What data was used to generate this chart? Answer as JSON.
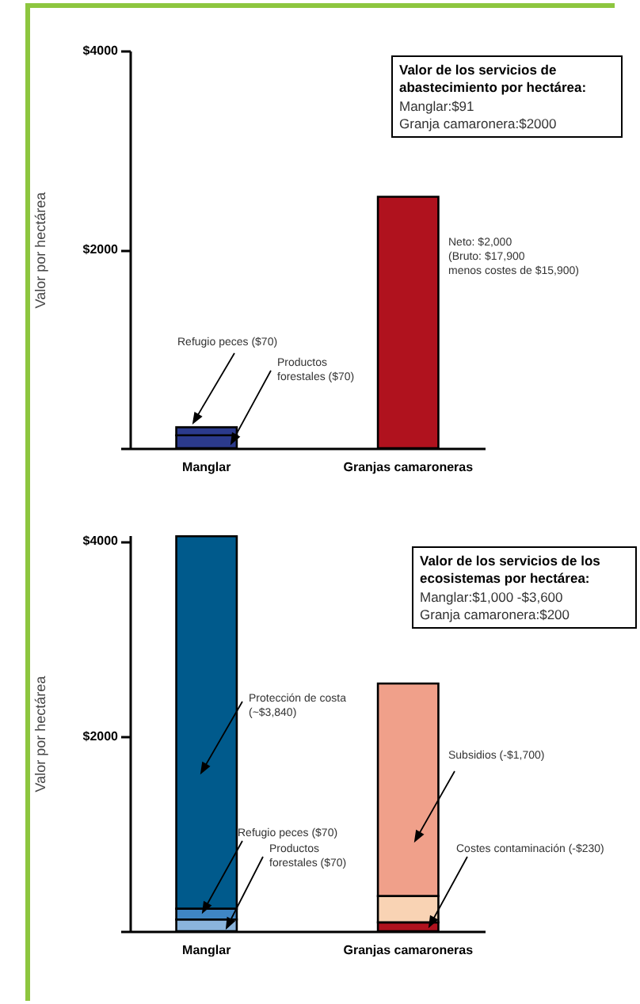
{
  "chart_data": [
    {
      "type": "bar",
      "stacked": true,
      "title": "Valor de los servicios de abastecimiento por hectárea:",
      "subtitle": "Manglar:$91\nGranja camaronera:$2000",
      "ylabel": "Valor por hectárea",
      "categories": [
        "Manglar",
        "Granjas camaroneras"
      ],
      "series": [
        {
          "color": "#2b3a8c",
          "values": [
            130,
            null
          ]
        },
        {
          "color": "#2b3a8c",
          "values": [
            80,
            null
          ]
        },
        {
          "color": "#b0121e",
          "values": [
            null,
            2530
          ]
        }
      ],
      "ylim": [
        0,
        4000
      ],
      "yticks": [
        {
          "value": 0,
          "label": null
        },
        {
          "value": 2000,
          "label": "$2000"
        },
        {
          "value": 4000,
          "label": "$4000"
        }
      ],
      "annotations": [
        "Refugio peces ($70)",
        "Productos\nforestales ($70)",
        "Neto: $2,000\n(Bruto: $17,900\nmenos costes de $15,900)"
      ]
    },
    {
      "type": "bar",
      "stacked": true,
      "title": "Valor de los servicios de los ecosistemas por hectárea:",
      "subtitle": "Manglar:$1,000 -$3,600\nGranja camaronera:$200",
      "ylabel": "Valor por hectárea",
      "categories": [
        "Manglar",
        "Granjas camaroneras"
      ],
      "series": [
        {
          "color": "#8ab4dc",
          "values": [
            120,
            null
          ]
        },
        {
          "color": "#3f86c4",
          "values": [
            110,
            null
          ]
        },
        {
          "color": "#005a8c",
          "values": [
            3820,
            null
          ]
        },
        {
          "color": "#b0121e",
          "values": [
            null,
            90
          ]
        },
        {
          "color": "#f9d3b4",
          "values": [
            null,
            270
          ]
        },
        {
          "color": "#f0a08a",
          "values": [
            null,
            2180
          ]
        }
      ],
      "ylim": [
        0,
        4060
      ],
      "yticks": [
        {
          "value": 0,
          "label": null
        },
        {
          "value": 2000,
          "label": "$2000"
        },
        {
          "value": 4000,
          "label": "$4000"
        }
      ],
      "annotations": [
        "Protección de costa\n(~$3,840)",
        "Refugio peces ($70)",
        "Productos\nforestales ($70)",
        "Subsidios (-$1,700)",
        "Costes contaminación (-$230)"
      ]
    }
  ]
}
